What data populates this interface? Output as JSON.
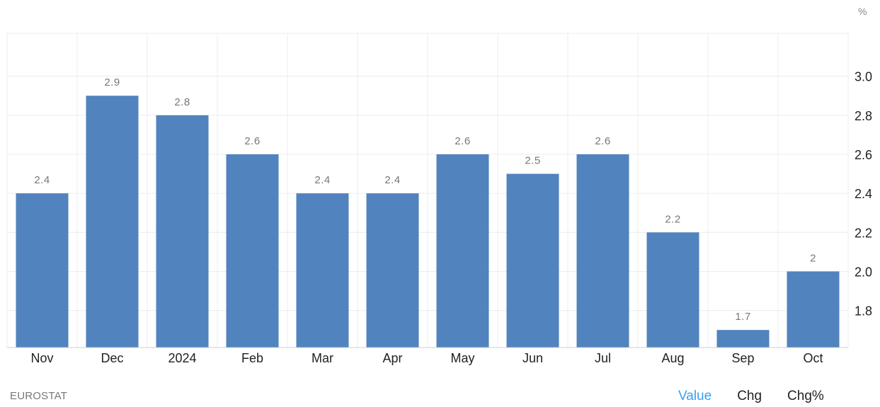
{
  "chart_data": {
    "type": "bar",
    "unit": "%",
    "categories": [
      "Nov",
      "Dec",
      "2024",
      "Feb",
      "Mar",
      "Apr",
      "May",
      "Jun",
      "Jul",
      "Aug",
      "Sep",
      "Oct"
    ],
    "values": [
      2.4,
      2.9,
      2.8,
      2.6,
      2.4,
      2.4,
      2.6,
      2.5,
      2.6,
      2.2,
      1.7,
      2
    ],
    "data_labels": [
      "2.4",
      "2.9",
      "2.8",
      "2.6",
      "2.4",
      "2.4",
      "2.6",
      "2.5",
      "2.6",
      "2.2",
      "1.7",
      "2"
    ],
    "y_ticks": [
      "1.8",
      "2.0",
      "2.2",
      "2.4",
      "2.6",
      "2.8",
      "3.0"
    ],
    "ylim": [
      1.61,
      3.22
    ],
    "y_axis_side": "right",
    "grid": true,
    "bar_color": "#5183be"
  },
  "source": "EUROSTAT",
  "tabs": [
    {
      "label": "Value",
      "active": true
    },
    {
      "label": "Chg",
      "active": false
    },
    {
      "label": "Chg%",
      "active": false
    }
  ]
}
